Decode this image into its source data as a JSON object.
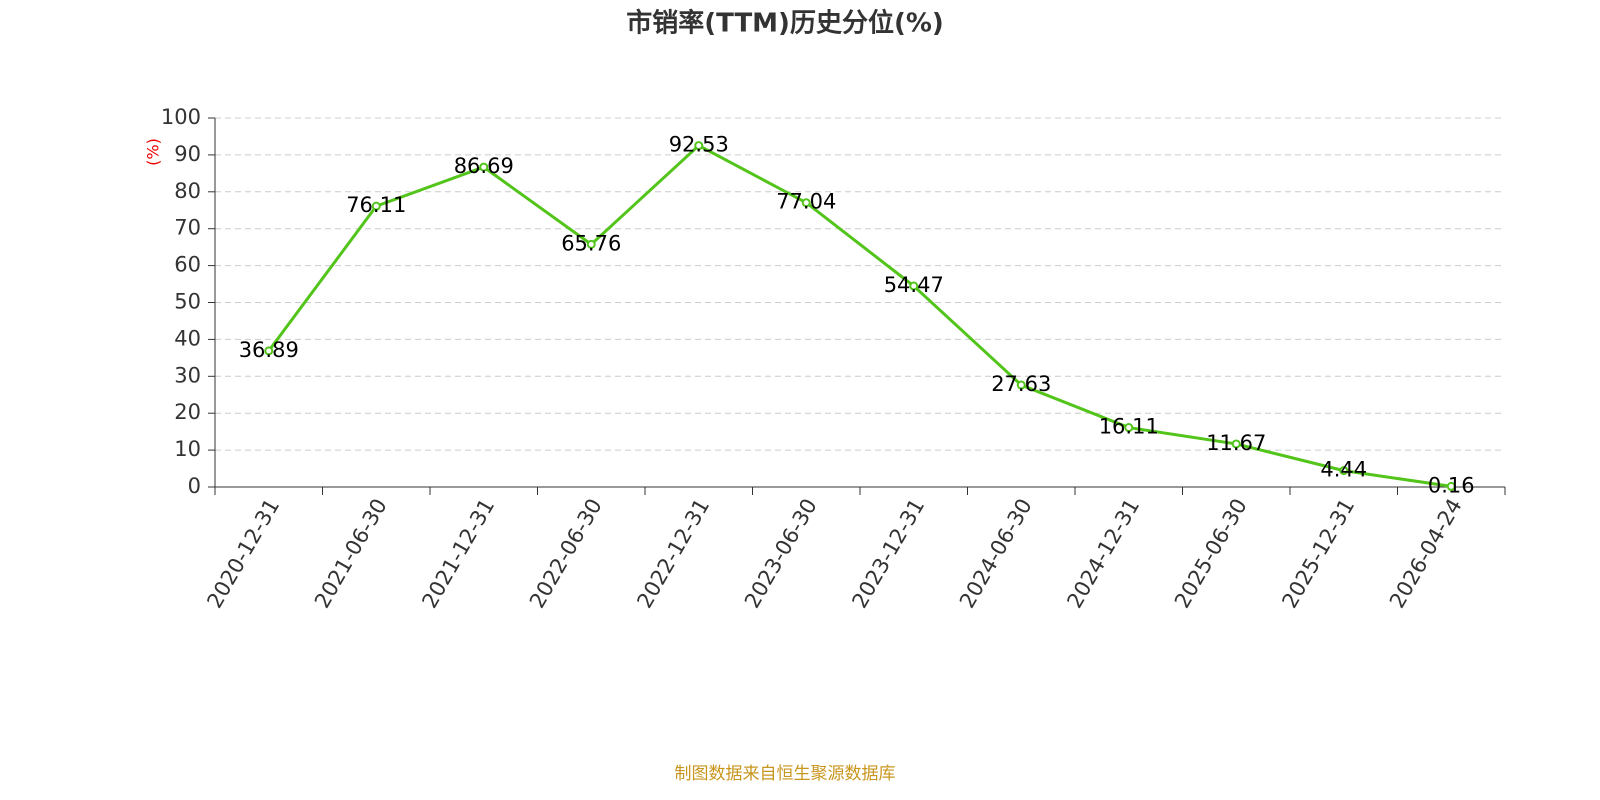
{
  "chart_data": {
    "type": "line",
    "title": "市销率(TTM)历史分位(%)",
    "y_label": "(%)",
    "categories": [
      "2020-12-31",
      "2021-06-30",
      "2021-12-31",
      "2022-06-30",
      "2022-12-31",
      "2023-06-30",
      "2023-12-31",
      "2024-06-30",
      "2024-12-31",
      "2025-06-30",
      "2025-12-31",
      "2026-04-24"
    ],
    "series": [
      {
        "name": "市销率(TTM)历史分位",
        "color": "#52c41a",
        "values": [
          36.89,
          76.11,
          86.69,
          65.76,
          92.53,
          77.04,
          54.47,
          27.63,
          16.11,
          11.67,
          4.44,
          0.16
        ]
      }
    ],
    "ylim": [
      0,
      100
    ],
    "yticks": [
      0,
      10,
      20,
      30,
      40,
      50,
      60,
      70,
      80,
      90,
      100
    ],
    "grid": true,
    "source": "制图数据来自恒生聚源数据库"
  }
}
